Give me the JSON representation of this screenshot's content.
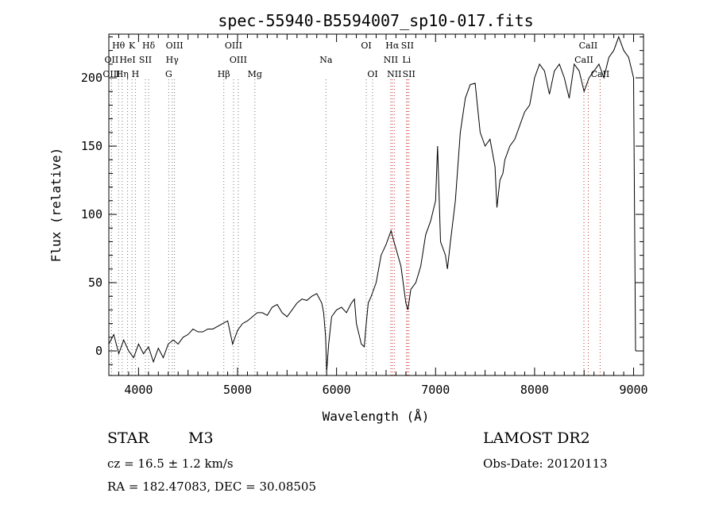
{
  "chart_data": {
    "type": "line",
    "title": "spec-55940-B5594007_sp10-017.fits",
    "xlabel": "Wavelength (Å)",
    "ylabel": "Flux (relative)",
    "xlim": [
      3700,
      9100
    ],
    "ylim": [
      -18,
      232
    ],
    "x_ticks": [
      4000,
      5000,
      6000,
      7000,
      8000,
      9000
    ],
    "y_ticks": [
      0,
      50,
      100,
      150,
      200
    ],
    "x_tick_labels": [
      "4000",
      "5000",
      "6000",
      "7000",
      "8000",
      "9000"
    ],
    "y_tick_labels": [
      "0",
      "50",
      "100",
      "150",
      "200"
    ],
    "series": [
      {
        "x": [
          3700,
          3750,
          3800,
          3850,
          3900,
          3950,
          4000,
          4050,
          4100,
          4150,
          4200,
          4250,
          4300,
          4350,
          4400,
          4450,
          4500,
          4550,
          4600,
          4650,
          4700,
          4750,
          4800,
          4850,
          4900,
          4950,
          5000,
          5050,
          5100,
          5150,
          5200,
          5250,
          5300,
          5350,
          5400,
          5450,
          5500,
          5550,
          5600,
          5650,
          5700,
          5750,
          5800,
          5850,
          5870,
          5890,
          5900,
          5920,
          5950,
          6000,
          6050,
          6100,
          6150,
          6180,
          6200,
          6250,
          6280,
          6300,
          6320,
          6350,
          6400,
          6450,
          6500,
          6550,
          6580,
          6600,
          6650,
          6700,
          6720,
          6750,
          6800,
          6850,
          6900,
          6950,
          7000,
          7020,
          7050,
          7100,
          7120,
          7150,
          7200,
          7250,
          7300,
          7350,
          7400,
          7450,
          7500,
          7550,
          7600,
          7620,
          7650,
          7680,
          7700,
          7750,
          7800,
          7850,
          7900,
          7950,
          8000,
          8050,
          8100,
          8150,
          8200,
          8250,
          8300,
          8350,
          8400,
          8450,
          8500,
          8550,
          8600,
          8650,
          8700,
          8750,
          8800,
          8850,
          8900,
          8950,
          9000,
          9020
        ],
        "y": [
          5,
          12,
          -2,
          8,
          0,
          -5,
          5,
          -2,
          3,
          -8,
          2,
          -5,
          5,
          8,
          5,
          10,
          12,
          16,
          14,
          14,
          16,
          16,
          18,
          20,
          22,
          5,
          15,
          20,
          22,
          25,
          28,
          28,
          26,
          32,
          34,
          28,
          25,
          30,
          35,
          38,
          37,
          40,
          42,
          35,
          28,
          10,
          -15,
          5,
          25,
          30,
          32,
          28,
          35,
          38,
          20,
          5,
          3,
          20,
          35,
          40,
          50,
          70,
          78,
          88,
          80,
          75,
          62,
          35,
          30,
          45,
          50,
          62,
          85,
          95,
          110,
          150,
          80,
          70,
          60,
          80,
          110,
          160,
          185,
          195,
          196,
          160,
          150,
          155,
          135,
          105,
          125,
          130,
          140,
          150,
          155,
          165,
          175,
          180,
          200,
          210,
          205,
          188,
          205,
          210,
          200,
          185,
          210,
          205,
          190,
          200,
          205,
          210,
          200,
          215,
          220,
          230,
          220,
          215,
          200,
          0
        ]
      }
    ],
    "lines": [
      {
        "label": "Hθ",
        "x": 3798,
        "row": 0
      },
      {
        "label": "OII",
        "x": 3727,
        "row": 1
      },
      {
        "label": "OIII",
        "x": 3727,
        "row": 2
      },
      {
        "label": "K",
        "x": 3934,
        "row": 0
      },
      {
        "label": "HeI",
        "x": 3889,
        "row": 1
      },
      {
        "label": "Hη",
        "x": 3835,
        "row": 2
      },
      {
        "label": "H",
        "x": 3968,
        "row": 2
      },
      {
        "label": "SII",
        "x": 4069,
        "row": 1
      },
      {
        "label": "Hδ",
        "x": 4102,
        "row": 0
      },
      {
        "label": "OIII",
        "x": 4363,
        "row": 0
      },
      {
        "label": "Hγ",
        "x": 4340,
        "row": 1
      },
      {
        "label": "G",
        "x": 4305,
        "row": 2
      },
      {
        "label": "OIII",
        "x": 4959,
        "row": 0
      },
      {
        "label": "OIII",
        "x": 5007,
        "row": 1
      },
      {
        "label": "Hβ",
        "x": 4861,
        "row": 2
      },
      {
        "label": "Mg",
        "x": 5175,
        "row": 2
      },
      {
        "label": "Na",
        "x": 5893,
        "row": 1
      },
      {
        "label": "OI",
        "x": 6300,
        "row": 0
      },
      {
        "label": "OI",
        "x": 6364,
        "row": 2
      },
      {
        "label": "Hα",
        "x": 6563,
        "row": 0
      },
      {
        "label": "SII",
        "x": 6716,
        "row": 0
      },
      {
        "label": "NII",
        "x": 6548,
        "row": 1
      },
      {
        "label": "Li",
        "x": 6707,
        "row": 1
      },
      {
        "label": "NII",
        "x": 6583,
        "row": 2
      },
      {
        "label": "SII",
        "x": 6731,
        "row": 2
      },
      {
        "label": "CaII",
        "x": 8542,
        "row": 0
      },
      {
        "label": "CaII",
        "x": 8498,
        "row": 1
      },
      {
        "label": "CaII",
        "x": 8662,
        "row": 2
      }
    ]
  },
  "info": {
    "object_type": "STAR",
    "subclass": "M3",
    "survey": "LAMOST DR2",
    "redshift_line": "cz = 16.5 ± 1.2 km/s",
    "obs_date_line": "Obs-Date: 20120113",
    "coords_line": "RA = 182.47083, DEC =  30.08505"
  }
}
